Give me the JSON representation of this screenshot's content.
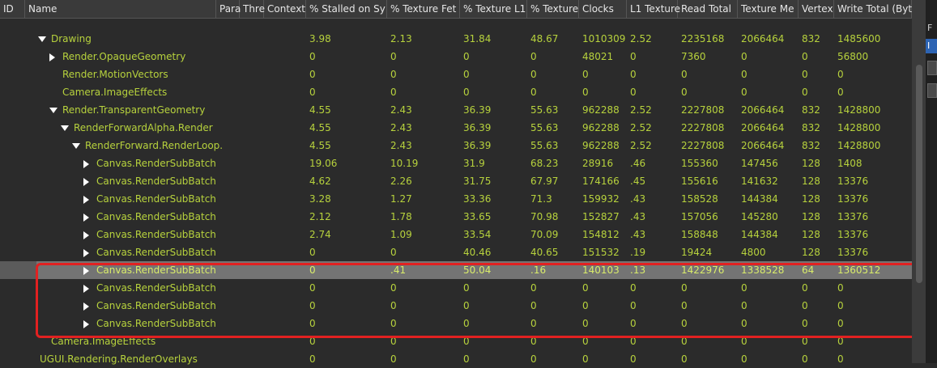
{
  "columns": [
    {
      "label": "ID"
    },
    {
      "label": "Name"
    },
    {
      "label": "Para"
    },
    {
      "label": "Thre"
    },
    {
      "label": "Context"
    },
    {
      "label": "% Stalled on Sy"
    },
    {
      "label": "% Texture Fet"
    },
    {
      "label": "% Texture L1"
    },
    {
      "label": "% Texture"
    },
    {
      "label": "Clocks"
    },
    {
      "label": "L1 Texture"
    },
    {
      "label": "Read Total"
    },
    {
      "label": "Texture Me"
    },
    {
      "label": "Vertex"
    },
    {
      "label": "Write Total (Byt"
    }
  ],
  "rows": [
    {
      "name": "Drawing",
      "level": 0,
      "expander": "expanded",
      "selected": false,
      "values": [
        "3.98",
        "2.13",
        "31.84",
        "48.67",
        "1010309",
        "2.52",
        "2235168",
        "2066464",
        "832",
        "1485600"
      ]
    },
    {
      "name": "Render.OpaqueGeometry",
      "level": 1,
      "expander": "collapsed",
      "selected": false,
      "values": [
        "0",
        "0",
        "0",
        "0",
        "48021",
        "0",
        "7360",
        "0",
        "0",
        "56800"
      ]
    },
    {
      "name": "Render.MotionVectors",
      "level": 1,
      "expander": "none",
      "selected": false,
      "values": [
        "0",
        "0",
        "0",
        "0",
        "0",
        "0",
        "0",
        "0",
        "0",
        "0"
      ]
    },
    {
      "name": "Camera.ImageEffects",
      "level": 1,
      "expander": "none",
      "selected": false,
      "values": [
        "0",
        "0",
        "0",
        "0",
        "0",
        "0",
        "0",
        "0",
        "0",
        "0"
      ]
    },
    {
      "name": "Render.TransparentGeometry",
      "level": 1,
      "expander": "expanded",
      "selected": false,
      "values": [
        "4.55",
        "2.43",
        "36.39",
        "55.63",
        "962288",
        "2.52",
        "2227808",
        "2066464",
        "832",
        "1428800"
      ]
    },
    {
      "name": "RenderForwardAlpha.Render",
      "level": 2,
      "expander": "expanded",
      "selected": false,
      "values": [
        "4.55",
        "2.43",
        "36.39",
        "55.63",
        "962288",
        "2.52",
        "2227808",
        "2066464",
        "832",
        "1428800"
      ]
    },
    {
      "name": "RenderForward.RenderLoop.",
      "level": 3,
      "expander": "expanded",
      "selected": false,
      "values": [
        "4.55",
        "2.43",
        "36.39",
        "55.63",
        "962288",
        "2.52",
        "2227808",
        "2066464",
        "832",
        "1428800"
      ]
    },
    {
      "name": "Canvas.RenderSubBatch",
      "level": 4,
      "expander": "collapsed",
      "selected": false,
      "values": [
        "19.06",
        "10.19",
        "31.9",
        "68.23",
        "28916",
        ".46",
        "155360",
        "147456",
        "128",
        "1408"
      ]
    },
    {
      "name": "Canvas.RenderSubBatch",
      "level": 4,
      "expander": "collapsed",
      "selected": false,
      "values": [
        "4.62",
        "2.26",
        "31.75",
        "67.97",
        "174166",
        ".45",
        "155616",
        "141632",
        "128",
        "13376"
      ]
    },
    {
      "name": "Canvas.RenderSubBatch",
      "level": 4,
      "expander": "collapsed",
      "selected": false,
      "values": [
        "3.28",
        "1.27",
        "33.36",
        "71.3",
        "159932",
        ".43",
        "158528",
        "144384",
        "128",
        "13376"
      ]
    },
    {
      "name": "Canvas.RenderSubBatch",
      "level": 4,
      "expander": "collapsed",
      "selected": false,
      "values": [
        "2.12",
        "1.78",
        "33.65",
        "70.98",
        "152827",
        ".43",
        "157056",
        "145280",
        "128",
        "13376"
      ]
    },
    {
      "name": "Canvas.RenderSubBatch",
      "level": 4,
      "expander": "collapsed",
      "selected": false,
      "values": [
        "2.74",
        "1.09",
        "33.54",
        "70.09",
        "154812",
        ".43",
        "158848",
        "144384",
        "128",
        "13376"
      ]
    },
    {
      "name": "Canvas.RenderSubBatch",
      "level": 4,
      "expander": "collapsed",
      "selected": false,
      "values": [
        "0",
        "0",
        "40.46",
        "40.65",
        "151532",
        ".19",
        "19424",
        "4800",
        "128",
        "13376"
      ]
    },
    {
      "name": "Canvas.RenderSubBatch",
      "level": 4,
      "expander": "collapsed",
      "selected": true,
      "values": [
        "0",
        ".41",
        "50.04",
        ".16",
        "140103",
        ".13",
        "1422976",
        "1338528",
        "64",
        "1360512"
      ]
    },
    {
      "name": "Canvas.RenderSubBatch",
      "level": 4,
      "expander": "collapsed",
      "selected": false,
      "values": [
        "0",
        "0",
        "0",
        "0",
        "0",
        "0",
        "0",
        "0",
        "0",
        "0"
      ]
    },
    {
      "name": "Canvas.RenderSubBatch",
      "level": 4,
      "expander": "collapsed",
      "selected": false,
      "values": [
        "0",
        "0",
        "0",
        "0",
        "0",
        "0",
        "0",
        "0",
        "0",
        "0"
      ]
    },
    {
      "name": "Canvas.RenderSubBatch",
      "level": 4,
      "expander": "collapsed",
      "selected": false,
      "values": [
        "0",
        "0",
        "0",
        "0",
        "0",
        "0",
        "0",
        "0",
        "0",
        "0"
      ]
    },
    {
      "name": "Camera.ImageEffects",
      "level": 0,
      "expander": "none",
      "selected": false,
      "values": [
        "0",
        "0",
        "0",
        "0",
        "0",
        "0",
        "0",
        "0",
        "0",
        "0"
      ]
    },
    {
      "name": "UGUI.Rendering.RenderOverlays",
      "level": -1,
      "expander": "none",
      "selected": false,
      "values": [
        "0",
        "0",
        "0",
        "0",
        "0",
        "0",
        "0",
        "0",
        "0",
        "0"
      ]
    }
  ],
  "right_panel": {
    "label_top": "F",
    "label_selected": "I"
  },
  "colors": {
    "text": "#b7d23d",
    "selected_row": "#747474",
    "highlight": "#e22121"
  }
}
